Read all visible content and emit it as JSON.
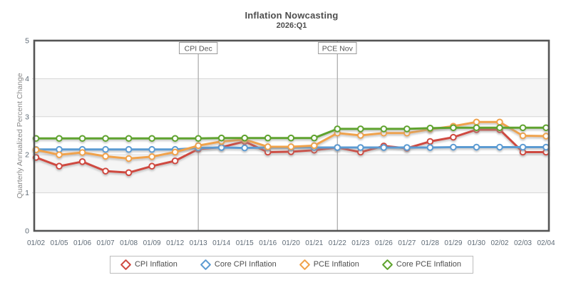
{
  "title": "Inflation Nowcasting",
  "subtitle": "2026:Q1",
  "chart_data": {
    "type": "line",
    "title": "Inflation Nowcasting",
    "subtitle": "2026:Q1",
    "ylabel": "Quarterly Annualized Percent Change",
    "ylim": [
      0,
      5
    ],
    "yticks": [
      0,
      1,
      2,
      3,
      4,
      5
    ],
    "grid": true,
    "band_shading": "alternating horizontal bands between integer gridlines",
    "legend_position": "bottom",
    "x": [
      "01/02",
      "01/05",
      "01/06",
      "01/07",
      "01/08",
      "01/09",
      "01/12",
      "01/13",
      "01/14",
      "01/15",
      "01/16",
      "01/20",
      "01/21",
      "01/22",
      "01/23",
      "01/26",
      "01/27",
      "01/28",
      "01/29",
      "01/30",
      "02/02",
      "02/03",
      "02/04"
    ],
    "series": [
      {
        "name": "CPI Inflation",
        "color": "#cf4a41",
        "values": [
          1.93,
          1.7,
          1.82,
          1.57,
          1.53,
          1.7,
          1.84,
          2.15,
          2.2,
          2.35,
          2.07,
          2.08,
          2.12,
          2.19,
          2.07,
          2.23,
          2.17,
          2.35,
          2.46,
          2.66,
          2.66,
          2.07,
          2.07
        ]
      },
      {
        "name": "Core CPI Inflation",
        "color": "#5c9bd2",
        "values": [
          2.14,
          2.14,
          2.14,
          2.14,
          2.14,
          2.14,
          2.14,
          2.18,
          2.19,
          2.18,
          2.19,
          2.19,
          2.19,
          2.19,
          2.19,
          2.19,
          2.19,
          2.19,
          2.2,
          2.2,
          2.2,
          2.2,
          2.2
        ]
      },
      {
        "name": "PCE Inflation",
        "color": "#f0a24b",
        "values": [
          2.13,
          2.0,
          2.06,
          1.96,
          1.9,
          1.95,
          2.07,
          2.24,
          2.35,
          2.4,
          2.21,
          2.21,
          2.24,
          2.57,
          2.51,
          2.57,
          2.57,
          2.67,
          2.75,
          2.86,
          2.86,
          2.5,
          2.49
        ]
      },
      {
        "name": "Core PCE Inflation",
        "color": "#5ea32d",
        "values": [
          2.43,
          2.43,
          2.43,
          2.43,
          2.43,
          2.43,
          2.43,
          2.43,
          2.44,
          2.44,
          2.44,
          2.44,
          2.44,
          2.68,
          2.68,
          2.68,
          2.68,
          2.7,
          2.71,
          2.71,
          2.71,
          2.71,
          2.71
        ]
      }
    ],
    "annotations": [
      {
        "label": "CPI Dec",
        "x": "01/13"
      },
      {
        "label": "PCE Nov",
        "x": "01/22"
      }
    ]
  }
}
